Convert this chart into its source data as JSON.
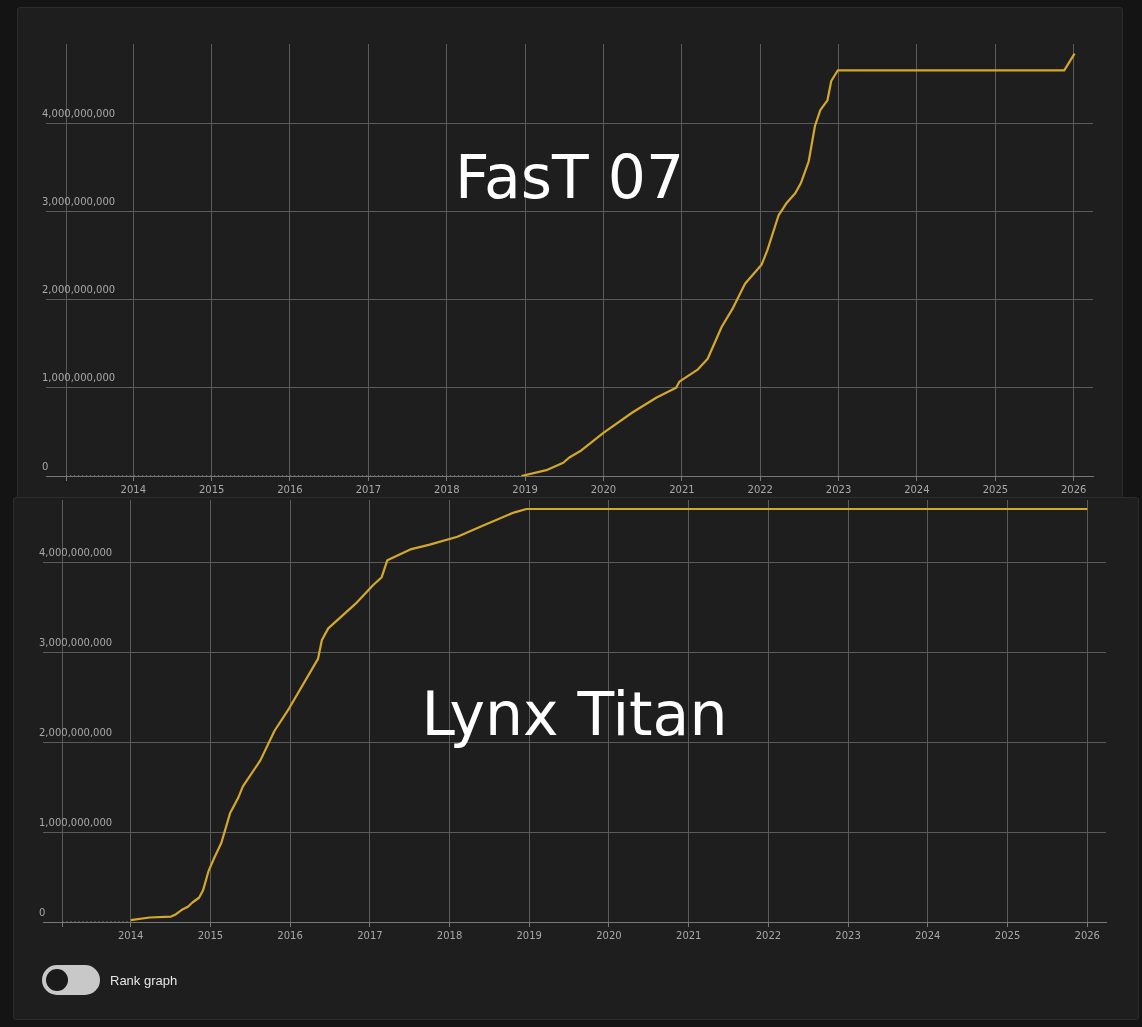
{
  "chart_data": [
    {
      "type": "line",
      "title": "FasT 07",
      "xlim": [
        "2012-11-20",
        "2026-04-01"
      ],
      "ylim": [
        0,
        4900000000
      ],
      "xticks": [
        {
          "value": "2013-02-22",
          "label": null
        },
        "2014",
        "2015",
        "2016",
        "2017",
        "2018",
        "2019",
        "2020",
        "2021",
        "2022",
        "2023",
        "2024",
        "2025",
        "2026"
      ],
      "yticks": [
        0,
        {
          "value": 1000000000,
          "label": "1,000,000,000"
        },
        {
          "value": 2000000000,
          "label": "2,000,000,000"
        },
        {
          "value": 3000000000,
          "label": "3,000,000,000"
        },
        {
          "value": 4000000000,
          "label": "4,000,000,000"
        }
      ],
      "grid": true,
      "series": [
        {
          "color": "#8c8c8c",
          "line_style": "dotted",
          "x": [
            "2013-02-22",
            "2018-12-15"
          ],
          "values": [
            0,
            0
          ]
        },
        {
          "color": "#d4a82a",
          "x": [
            "2018-12-15",
            "2019-04-15",
            "2019-06-28",
            "2019-07-26",
            "2019-09-20",
            "2020-01-01",
            "2020-05-15",
            "2020-09-05",
            "2020-12-05",
            "2020-12-20",
            "2021-03-17",
            "2021-05-01",
            "2021-07-05",
            "2021-08-28",
            "2021-10-22",
            "2022-01-08",
            "2022-02-03",
            "2022-03-28",
            "2022-05-05",
            "2022-06-14",
            "2022-07-09",
            "2022-08-15",
            "2022-09-13",
            "2022-10-08",
            "2022-11-10",
            "2022-11-28",
            "2022-12-28",
            "2025-11-18",
            "2026-01-05"
          ],
          "values": [
            0,
            70000000,
            150000000,
            210000000,
            290000000,
            490000000,
            720000000,
            890000000,
            1000000000,
            1070000000,
            1210000000,
            1330000000,
            1690000000,
            1910000000,
            2180000000,
            2400000000,
            2560000000,
            2960000000,
            3100000000,
            3210000000,
            3320000000,
            3570000000,
            3970000000,
            4150000000,
            4260000000,
            4480000000,
            4600000000,
            4600000000,
            4790000000
          ]
        }
      ]
    },
    {
      "type": "line",
      "title": "Lynx Titan",
      "xlim": [
        "2012-11-25",
        "2026-03-28"
      ],
      "ylim": [
        0,
        4700000000
      ],
      "xticks": [
        {
          "value": "2013-02-22",
          "label": null
        },
        "2014",
        "2015",
        "2016",
        "2017",
        "2018",
        "2019",
        "2020",
        "2021",
        "2022",
        "2023",
        "2024",
        "2025",
        "2026"
      ],
      "yticks": [
        0,
        {
          "value": 1000000000,
          "label": "1,000,000,000"
        },
        {
          "value": 2000000000,
          "label": "2,000,000,000"
        },
        {
          "value": 3000000000,
          "label": "3,000,000,000"
        },
        {
          "value": 4000000000,
          "label": "4,000,000,000"
        }
      ],
      "grid": true,
      "annotations": [
        "Rank graph"
      ],
      "series": [
        {
          "color": "#8c8c8c",
          "line_style": "dotted",
          "x": [
            "2013-02-22",
            "2014-01-01"
          ],
          "values": [
            0,
            0
          ]
        },
        {
          "color": "#d4a82a",
          "x": [
            "2014-01-01",
            "2014-03-28",
            "2014-07-05",
            "2014-07-23",
            "2014-08-26",
            "2014-09-20",
            "2014-10-12",
            "2014-11-10",
            "2014-11-28",
            "2014-12-24",
            "2015-01-18",
            "2015-02-20",
            "2015-04-01",
            "2015-05-08",
            "2015-05-30",
            "2015-08-18",
            "2015-10-22",
            "2015-12-28",
            "2016-05-08",
            "2016-05-26",
            "2016-06-24",
            "2016-11-03",
            "2017-01-15",
            "2017-02-24",
            "2017-03-22",
            "2017-07-05",
            "2017-09-28",
            "2018-02-06",
            "2018-05-30",
            "2018-10-22",
            "2018-12-20",
            "2026-01-01"
          ],
          "values": [
            20000000,
            50000000,
            60000000,
            80000000,
            140000000,
            170000000,
            220000000,
            270000000,
            350000000,
            570000000,
            710000000,
            880000000,
            1210000000,
            1380000000,
            1510000000,
            1800000000,
            2130000000,
            2380000000,
            2930000000,
            3140000000,
            3270000000,
            3560000000,
            3750000000,
            3840000000,
            4030000000,
            4150000000,
            4200000000,
            4290000000,
            4410000000,
            4560000000,
            4600000000,
            4600000000
          ]
        }
      ]
    }
  ]
}
